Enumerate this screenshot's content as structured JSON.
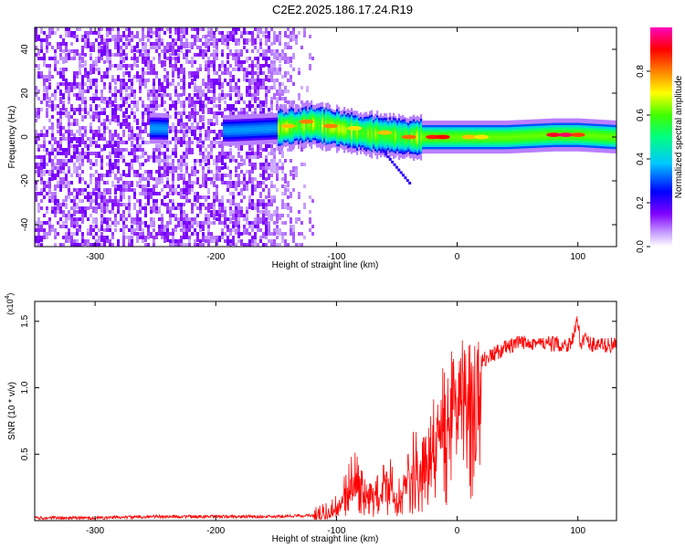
{
  "title": "C2E2.2025.186.17.24.R19",
  "chart_data": [
    {
      "type": "heatmap",
      "description_of_mark": "frequency-height spectrogram",
      "xlabel": "Height of straight line (km)",
      "ylabel": "Frequency (Hz)",
      "xlim": [
        -350,
        132
      ],
      "ylim": [
        -50,
        50
      ],
      "xticks": [
        -300,
        -200,
        -100,
        0,
        100
      ],
      "yticks": [
        -40,
        -20,
        0,
        20,
        40
      ],
      "colorbar": {
        "label": "Normalized spectral amplitude",
        "ticks": [
          0.0,
          0.2,
          0.4,
          0.6,
          0.8
        ],
        "range": [
          0.0,
          1.0
        ],
        "colormap": [
          "#ffffff",
          "#8000ff",
          "#0000ff",
          "#00ffff",
          "#00ff00",
          "#ffff00",
          "#ff8000",
          "#ff0000",
          "#ff00ff"
        ]
      },
      "ridge": [
        {
          "x": -250,
          "y": 4
        },
        {
          "x": -190,
          "y": 3
        },
        {
          "x": -150,
          "y": 4
        },
        {
          "x": -120,
          "y": 6
        },
        {
          "x": -100,
          "y": 4
        },
        {
          "x": -80,
          "y": 2
        },
        {
          "x": -60,
          "y": 1
        },
        {
          "x": -40,
          "y": 0
        },
        {
          "x": -20,
          "y": 0
        },
        {
          "x": 0,
          "y": 0
        },
        {
          "x": 40,
          "y": 0
        },
        {
          "x": 80,
          "y": 1
        },
        {
          "x": 100,
          "y": 1
        },
        {
          "x": 132,
          "y": 0
        }
      ]
    },
    {
      "type": "line",
      "xlabel": "Height of straight line (km)",
      "ylabel": "SNR (10 * v/v)",
      "y_exponent": "(x10",
      "y_exponent_power": "4",
      "y_exponent_close": ")",
      "xlim": [
        -350,
        132
      ],
      "ylim": [
        0,
        1.65
      ],
      "xticks": [
        -300,
        -200,
        -100,
        0,
        100
      ],
      "yticks": [
        0.5,
        1.0,
        1.5
      ],
      "ytick_labels": [
        "0.5",
        "1.0",
        "1.5"
      ],
      "color": "#ff0000",
      "series": [
        {
          "x": [
            -350,
            -300,
            -250,
            -200,
            -150,
            -120,
            -110,
            -100,
            -95,
            -90,
            -85,
            -80,
            -75,
            -70,
            -65,
            -60,
            -55,
            -50,
            -45,
            -40,
            -35,
            -30,
            -25,
            -20,
            -15,
            -10,
            -5,
            0,
            5,
            10,
            15,
            20,
            30,
            40,
            50,
            60,
            70,
            80,
            90,
            95,
            100,
            102,
            105,
            110,
            120,
            132
          ],
          "y": [
            0.02,
            0.02,
            0.03,
            0.03,
            0.03,
            0.04,
            0.06,
            0.12,
            0.2,
            0.3,
            0.35,
            0.28,
            0.2,
            0.15,
            0.25,
            0.35,
            0.3,
            0.15,
            0.3,
            0.4,
            0.5,
            0.45,
            0.55,
            0.7,
            0.8,
            0.9,
            0.95,
            1.0,
            1.05,
            1.1,
            1.15,
            1.2,
            1.25,
            1.3,
            1.33,
            1.35,
            1.33,
            1.33,
            1.32,
            1.35,
            1.5,
            1.33,
            1.38,
            1.33,
            1.32,
            1.32
          ]
        }
      ]
    }
  ]
}
